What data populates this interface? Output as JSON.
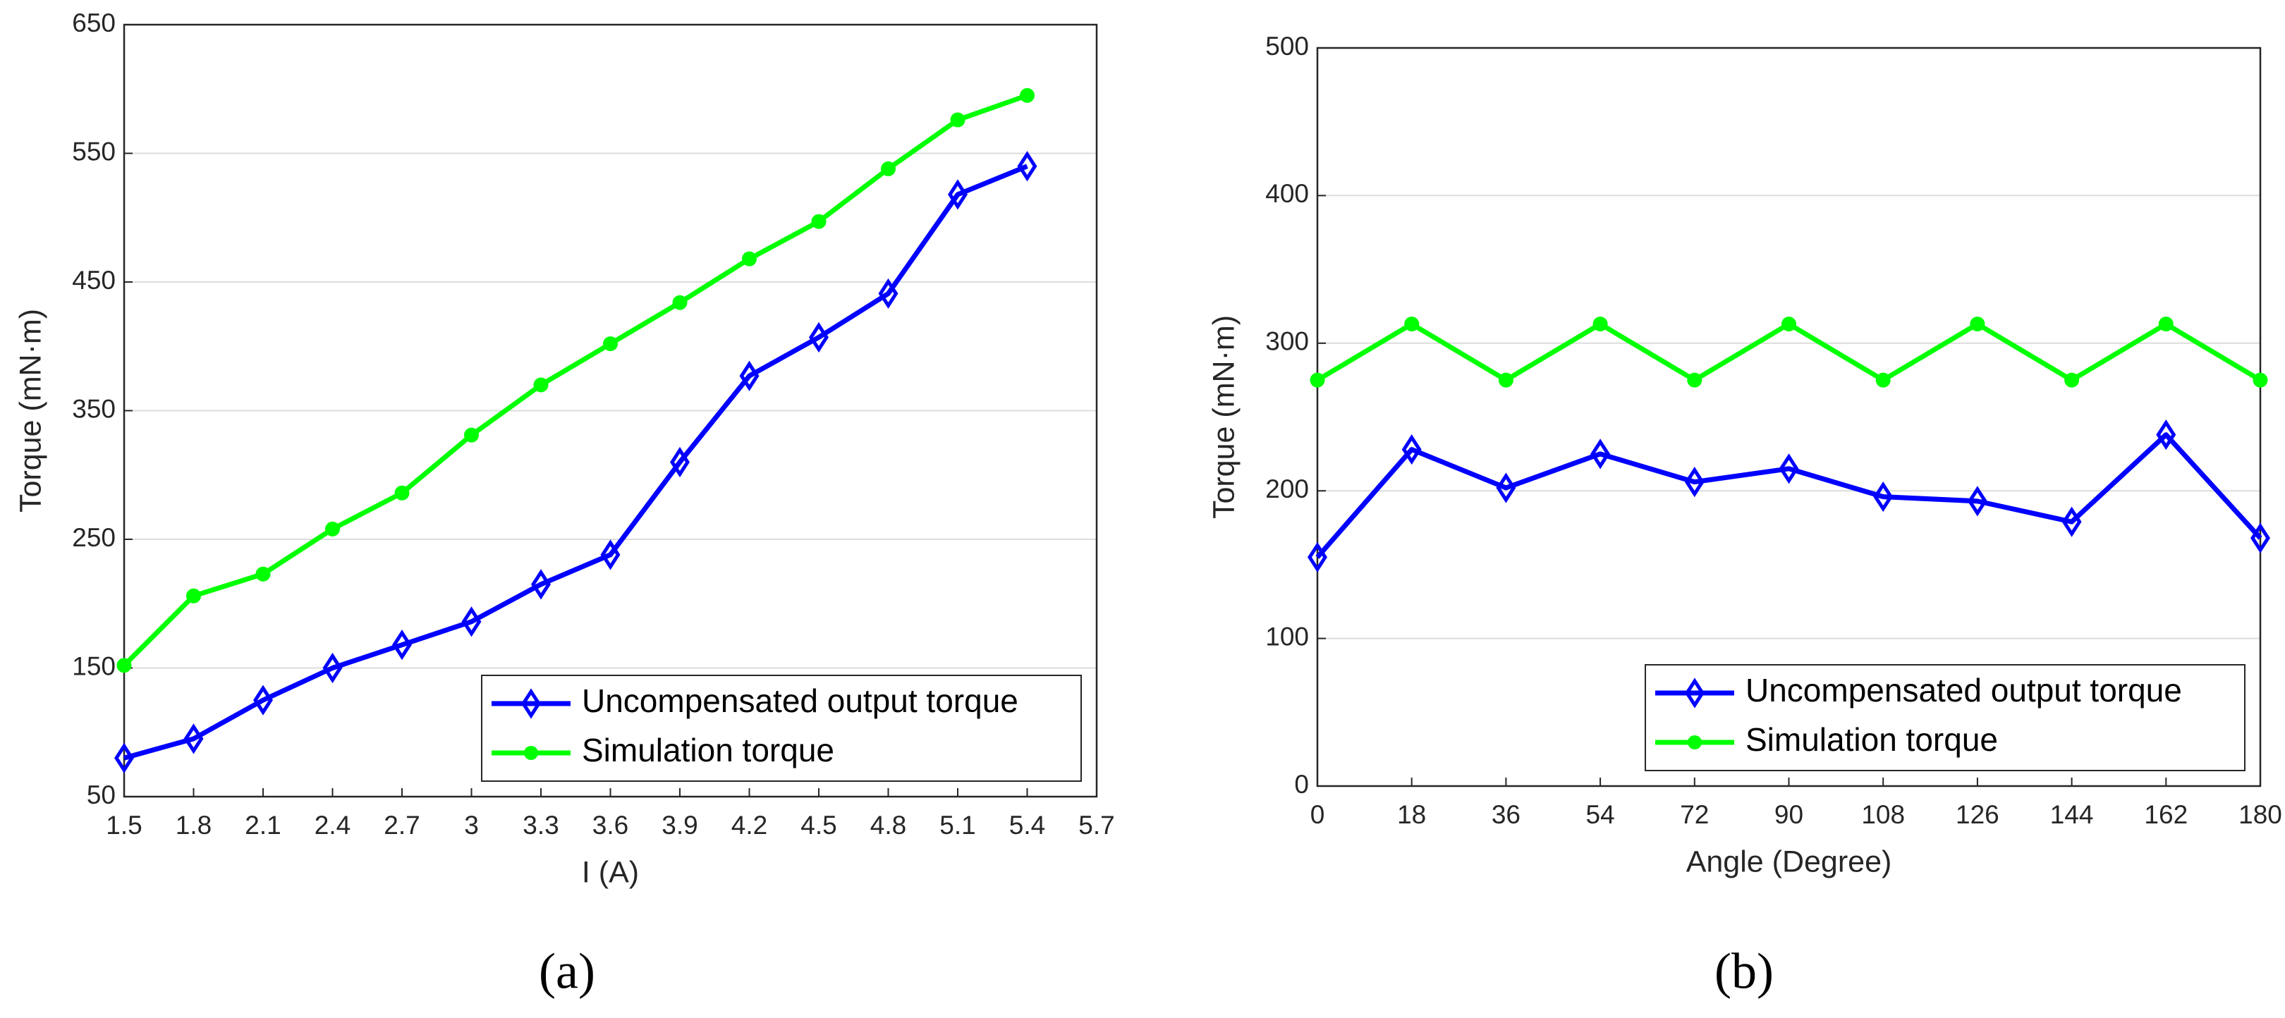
{
  "chart_data": [
    {
      "type": "line",
      "label": "(a)",
      "xlabel": "I (A)",
      "ylabel": "Torque (mN·m)",
      "x": [
        1.5,
        1.8,
        2.1,
        2.4,
        2.7,
        3,
        3.3,
        3.6,
        3.9,
        4.2,
        4.5,
        4.8,
        5.1,
        5.4
      ],
      "xlim": [
        1.5,
        5.7
      ],
      "xticks": [
        1.5,
        1.8,
        2.1,
        2.4,
        2.7,
        3,
        3.3,
        3.6,
        3.9,
        4.2,
        4.5,
        4.8,
        5.1,
        5.4,
        5.7
      ],
      "ylim": [
        50,
        650
      ],
      "yticks": [
        50,
        150,
        250,
        350,
        450,
        550,
        650
      ],
      "grid": true,
      "legend": "lower right",
      "series": [
        {
          "name": "Uncompensated output torque",
          "color": "#0000ff",
          "marker": "diamond",
          "values": [
            80,
            95,
            125,
            150,
            168,
            186,
            215,
            238,
            310,
            377,
            407,
            441,
            518,
            540
          ]
        },
        {
          "name": "Simulation torque",
          "color": "#00ff00",
          "marker": "circle",
          "values": [
            152,
            206,
            223,
            258,
            286,
            331,
            370,
            402,
            434,
            468,
            497,
            538,
            576,
            595
          ]
        }
      ]
    },
    {
      "type": "line",
      "label": "(b)",
      "xlabel": "Angle (Degree)",
      "ylabel": "Torque (mN·m)",
      "x": [
        0,
        18,
        36,
        54,
        72,
        90,
        108,
        126,
        144,
        162,
        180
      ],
      "xlim": [
        0,
        180
      ],
      "xticks": [
        0,
        18,
        36,
        54,
        72,
        90,
        108,
        126,
        144,
        162,
        180
      ],
      "ylim": [
        0,
        500
      ],
      "yticks": [
        0,
        100,
        200,
        300,
        400,
        500
      ],
      "grid": true,
      "legend": "lower right",
      "series": [
        {
          "name": "Uncompensated output torque",
          "color": "#0000ff",
          "marker": "diamond",
          "values": [
            155,
            228,
            202,
            225,
            206,
            215,
            196,
            193,
            179,
            238,
            168
          ]
        },
        {
          "name": "Simulation torque",
          "color": "#00ff00",
          "marker": "circle",
          "values": [
            275,
            313,
            275,
            313,
            275,
            313,
            275,
            313,
            275,
            313,
            275
          ]
        }
      ]
    }
  ]
}
